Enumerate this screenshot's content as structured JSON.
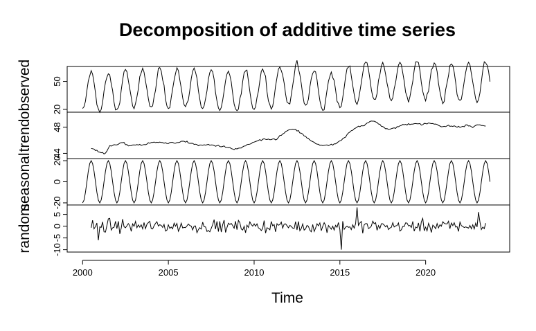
{
  "chart_data": {
    "type": "line",
    "title": "Decomposition of additive time series",
    "xlabel": "Time",
    "x_ticks": [
      "2000",
      "2005",
      "2010",
      "2015",
      "2020"
    ],
    "xlim": [
      1999.1,
      2024.9
    ],
    "frequency": 12,
    "panels": [
      {
        "ylabel": "observed",
        "yticks": [
          "20",
          "50"
        ],
        "ylim": [
          17,
          66
        ],
        "series": {
          "start": 2000.0,
          "mean_anchors": [
            [
              2000.0,
              40
            ],
            [
              2001.5,
              37
            ],
            [
              2002.5,
              42
            ],
            [
              2004.0,
              42
            ],
            [
              2005.0,
              43
            ],
            [
              2007.0,
              42
            ],
            [
              2008.7,
              37.5
            ],
            [
              2010.0,
              41.5
            ],
            [
              2011.0,
              43
            ],
            [
              2012.0,
              47
            ],
            [
              2012.5,
              47.5
            ],
            [
              2013.7,
              40
            ],
            [
              2014.5,
              39
            ],
            [
              2015.0,
              42
            ],
            [
              2016.0,
              48
            ],
            [
              2016.7,
              52
            ],
            [
              2017.5,
              49
            ],
            [
              2018.5,
              50
            ],
            [
              2020.0,
              50.5
            ],
            [
              2021.0,
              49
            ],
            [
              2022.5,
              49
            ],
            [
              2023.0,
              50
            ],
            [
              2023.83,
              49.5
            ]
          ],
          "amplitude": 21,
          "peak_month": 6,
          "noise_scale": 2.5
        }
      },
      {
        "ylabel": "trend",
        "yticks": [
          "44",
          "48"
        ],
        "ylim": [
          43.2,
          50.3
        ],
        "series": {
          "start": 2000.5,
          "end": 2023.5,
          "anchors": [
            [
              2000.5,
              44.8
            ],
            [
              2001.0,
              44.2
            ],
            [
              2001.3,
              44.0
            ],
            [
              2001.6,
              45.1
            ],
            [
              2002.0,
              45.3
            ],
            [
              2002.3,
              45.7
            ],
            [
              2002.6,
              45.2
            ],
            [
              2003.0,
              45.3
            ],
            [
              2003.5,
              45.3
            ],
            [
              2004.0,
              45.6
            ],
            [
              2004.5,
              45.8
            ],
            [
              2004.9,
              45.5
            ],
            [
              2005.3,
              45.6
            ],
            [
              2005.8,
              45.8
            ],
            [
              2006.3,
              45.6
            ],
            [
              2006.8,
              45.2
            ],
            [
              2007.3,
              45.3
            ],
            [
              2007.8,
              45.2
            ],
            [
              2008.3,
              45.0
            ],
            [
              2008.8,
              44.6
            ],
            [
              2009.3,
              44.9
            ],
            [
              2009.8,
              45.5
            ],
            [
              2010.3,
              46.0
            ],
            [
              2010.8,
              46.1
            ],
            [
              2011.3,
              46.2
            ],
            [
              2011.7,
              47.0
            ],
            [
              2012.0,
              47.6
            ],
            [
              2012.4,
              47.6
            ],
            [
              2012.7,
              47.2
            ],
            [
              2013.1,
              46.3
            ],
            [
              2013.5,
              45.6
            ],
            [
              2014.0,
              45.2
            ],
            [
              2014.4,
              45.2
            ],
            [
              2014.8,
              45.5
            ],
            [
              2015.2,
              46.2
            ],
            [
              2015.6,
              47.3
            ],
            [
              2016.0,
              48.1
            ],
            [
              2016.4,
              48.3
            ],
            [
              2016.7,
              48.8
            ],
            [
              2017.0,
              48.9
            ],
            [
              2017.3,
              48.5
            ],
            [
              2017.6,
              47.9
            ],
            [
              2017.9,
              47.6
            ],
            [
              2018.2,
              47.9
            ],
            [
              2018.6,
              48.3
            ],
            [
              2019.0,
              48.5
            ],
            [
              2019.4,
              48.6
            ],
            [
              2019.8,
              48.4
            ],
            [
              2020.2,
              48.6
            ],
            [
              2020.6,
              48.5
            ],
            [
              2021.0,
              48.1
            ],
            [
              2021.5,
              48.2
            ],
            [
              2022.0,
              48.0
            ],
            [
              2022.4,
              48.3
            ],
            [
              2022.8,
              48.0
            ],
            [
              2023.0,
              48.4
            ],
            [
              2023.5,
              48.2
            ]
          ],
          "noise_scale": 0.12
        }
      },
      {
        "ylabel": "seasonal",
        "yticks": [
          "-20",
          "0",
          "20"
        ],
        "ylim": [
          -22,
          22
        ],
        "series": {
          "start": 2000.0,
          "end": 2023.83,
          "amplitude": 20,
          "peak_month": 6
        }
      },
      {
        "ylabel": "random",
        "yticks": [
          "-10",
          "-5",
          "0",
          "5"
        ],
        "ylim": [
          -11,
          9
        ],
        "series": {
          "start": 2000.5,
          "end": 2023.5,
          "sd": 2.2,
          "spikes": [
            [
              2016.0,
              8
            ],
            [
              2015.1,
              -10
            ],
            [
              2023.1,
              6
            ],
            [
              2000.9,
              -6
            ]
          ]
        }
      }
    ]
  }
}
